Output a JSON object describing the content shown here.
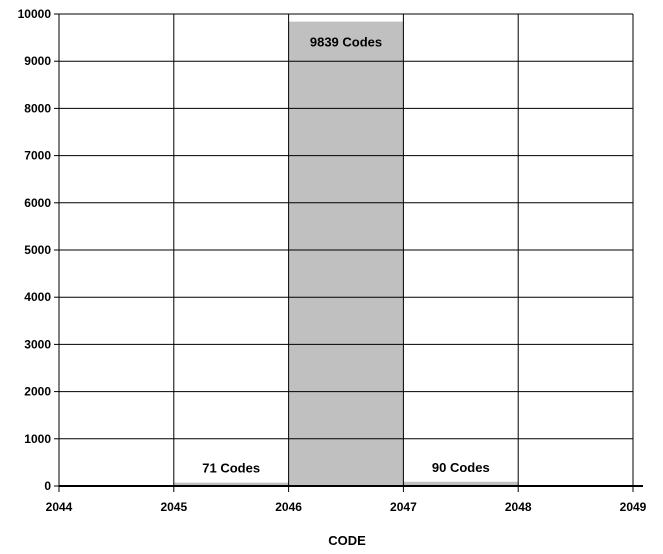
{
  "chart_data": {
    "type": "bar",
    "title": "",
    "xlabel": "CODE",
    "ylabel": "",
    "x_ticks": [
      2044,
      2045,
      2046,
      2047,
      2048,
      2049
    ],
    "xlim": [
      2044,
      2049
    ],
    "ylim": [
      0,
      10000
    ],
    "y_ticks": [
      0,
      1000,
      2000,
      3000,
      4000,
      5000,
      6000,
      7000,
      8000,
      9000,
      10000
    ],
    "grid": true,
    "bars": [
      {
        "x_start": 2045,
        "x_end": 2046,
        "value": 71,
        "label": "71 Codes"
      },
      {
        "x_start": 2046,
        "x_end": 2047,
        "value": 9839,
        "label": "9839 Codes"
      },
      {
        "x_start": 2047,
        "x_end": 2048,
        "value": 90,
        "label": "90 Codes"
      }
    ],
    "colors": {
      "bar": "#c0c0c0",
      "grid": "#000000",
      "axis": "#000000"
    }
  }
}
